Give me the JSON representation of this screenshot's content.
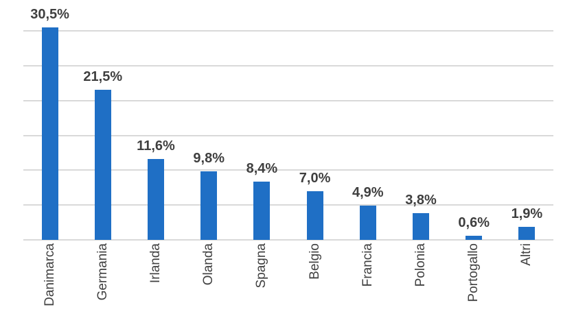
{
  "chart_data": {
    "type": "bar",
    "categories": [
      "Danimarca",
      "Germania",
      "Irlanda",
      "Olanda",
      "Spagna",
      "Belgio",
      "Francia",
      "Polonia",
      "Portogallo",
      "Altri"
    ],
    "values": [
      30.5,
      21.5,
      11.6,
      9.8,
      8.4,
      7.0,
      4.9,
      3.8,
      0.6,
      1.9
    ],
    "value_labels": [
      "30,5%",
      "21,5%",
      "11,6%",
      "9,8%",
      "8,4%",
      "7,0%",
      "4,9%",
      "3,8%",
      "0,6%",
      "1,9%"
    ],
    "title": "",
    "xlabel": "",
    "ylabel": "",
    "ylim": [
      0,
      30
    ],
    "gridline_step": 5,
    "grid": true,
    "legend": false,
    "y_tick_labels_visible": false,
    "bar_color": "#1F6FC5",
    "value_label_color": "#3F3F3F",
    "category_label_color": "#404040",
    "gridline_color": "#D9D9D9"
  }
}
